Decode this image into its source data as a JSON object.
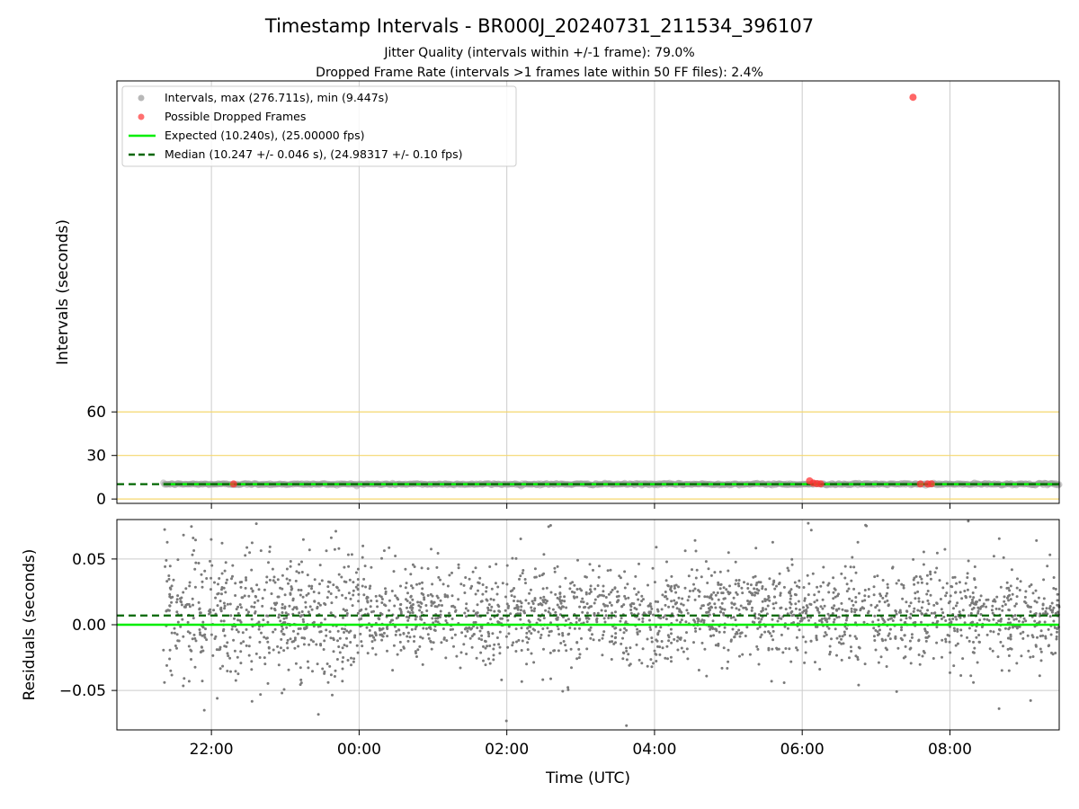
{
  "title": "Timestamp Intervals - BR000J_20240731_211534_396107",
  "subtitle_1": "Jitter Quality (intervals within +/-1 frame): 79.0%",
  "subtitle_2": "Dropped Frame Rate (intervals >1 frames late within 50 FF files): 2.4%",
  "colors": {
    "interval_points": "#9a9a9a",
    "dropped_points": "#ff3333",
    "expected_line": "#00ee00",
    "median_line": "#006600",
    "residual_points": "#7a7a7a",
    "reference_lines": "#f5d76e",
    "grid": "#cccccc"
  },
  "chart_data": [
    {
      "type": "scatter",
      "ylabel": "Intervals (seconds)",
      "xlabel": "",
      "x_unit": "hours since 2024-07-31 00:00 UTC",
      "xlim": [
        20.72,
        33.48
      ],
      "ylim": [
        -3,
        288
      ],
      "yticks": [
        0,
        30,
        60
      ],
      "horizontal_reference_lines": [
        0,
        30,
        60
      ],
      "grid": "vertical",
      "legend_position": "upper-left",
      "legend": [
        "Intervals, max (276.711s), min (9.447s)",
        "Possible Dropped Frames",
        "Expected (10.240s), (25.00000 fps)",
        "Median (10.247 +/- 0.046 s), (24.98317 +/- 0.10 fps)"
      ],
      "series": [
        {
          "name": "Intervals, max (276.711s), min (9.447s)",
          "kind": "points",
          "x_range": [
            21.35,
            33.48
          ],
          "value_approx": 10.25
        },
        {
          "name": "Possible Dropped Frames",
          "kind": "points",
          "points": [
            [
              22.3,
              10.4
            ],
            [
              30.1,
              12.5
            ],
            [
              30.15,
              11.0
            ],
            [
              30.2,
              10.6
            ],
            [
              30.25,
              10.5
            ],
            [
              31.6,
              10.4
            ],
            [
              31.7,
              10.4
            ],
            [
              31.75,
              10.5
            ],
            [
              31.5,
              276.711
            ]
          ]
        },
        {
          "name": "Expected (10.240s), (25.00000 fps)",
          "kind": "hline",
          "y": 10.24
        },
        {
          "name": "Median (10.247 +/- 0.046 s), (24.98317 +/- 0.10 fps)",
          "kind": "hline-dashed",
          "y": 10.247
        }
      ]
    },
    {
      "type": "scatter",
      "ylabel": "Residuals (seconds)",
      "xlabel": "Time (UTC)",
      "x_unit": "hours since 2024-07-31 00:00 UTC",
      "xlim": [
        20.72,
        33.48
      ],
      "ylim": [
        -0.08,
        0.08
      ],
      "yticks": [
        0.05,
        0.0,
        -0.05
      ],
      "ytick_labels": [
        "0.05",
        "0.00",
        "−0.05"
      ],
      "xticks": [
        22,
        24,
        26,
        28,
        30,
        32
      ],
      "xtick_labels": [
        "22:00",
        "00:00",
        "02:00",
        "04:00",
        "06:00",
        "08:00"
      ],
      "grid": "both",
      "series": [
        {
          "name": "Residuals",
          "kind": "points",
          "x_range": [
            21.35,
            33.48
          ],
          "center_approx": 0.007,
          "spread_approx": 0.03
        },
        {
          "name": "Expected",
          "kind": "hline",
          "y": 0.0
        },
        {
          "name": "Median",
          "kind": "hline-dashed",
          "y": 0.007
        }
      ]
    }
  ]
}
